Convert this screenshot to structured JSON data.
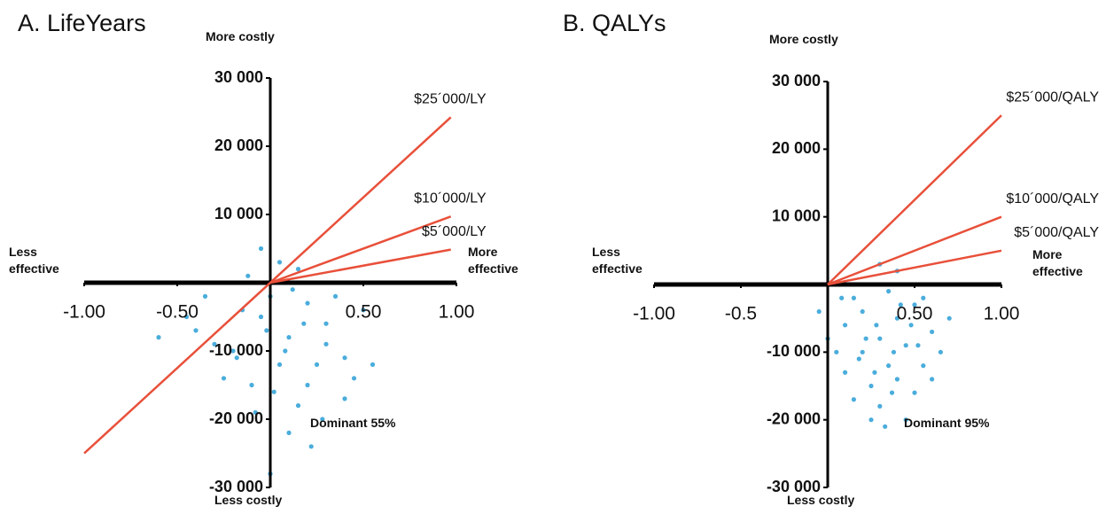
{
  "chart_data": [
    {
      "type": "scatter",
      "title": "A. LifeYears",
      "annotations": {
        "top": "More costly",
        "bottom": "Less costly",
        "left": "Less effective",
        "right": "More effective",
        "result": "Dominant 55%"
      },
      "xlim": [
        -1,
        1
      ],
      "ylim": [
        -30000,
        30000
      ],
      "xticks": [
        {
          "value": -1,
          "label": "-1.00"
        },
        {
          "value": -0.5,
          "label": "-0.50"
        },
        {
          "value": 0.5,
          "label": "0.50"
        },
        {
          "value": 1,
          "label": "1.00"
        }
      ],
      "yticks": [
        {
          "value": 30000,
          "label": "30 000"
        },
        {
          "value": 20000,
          "label": "20 000"
        },
        {
          "value": 10000,
          "label": "10 000"
        },
        {
          "value": -10000,
          "label": "-10 000"
        },
        {
          "value": -20000,
          "label": "-20 000"
        },
        {
          "value": -30000,
          "label": "-30 000"
        }
      ],
      "points": {
        "color": "#2a9fd6",
        "x": [
          -0.05,
          0.1,
          -0.2,
          0.2,
          0.05,
          -0.1,
          0.15,
          0.3,
          -0.3,
          0,
          0.25,
          -0.15,
          0.4,
          -0.4,
          0.1,
          0,
          0.05,
          -0.05,
          0.35,
          -0.25,
          0.2,
          0.45,
          -0.45,
          0.12,
          -0.08,
          0.28,
          0.55,
          -0.6,
          0.08,
          -0.02,
          0.18,
          0.5,
          -0.35,
          0.22,
          0.02,
          0.3,
          -0.18,
          0.4,
          0.15,
          -0.12
        ],
        "y": [
          -5000,
          -8000,
          -10000,
          -3000,
          -12000,
          -15000,
          -18000,
          -6000,
          -9000,
          -2000,
          -12000,
          -4000,
          -11000,
          -7000,
          -22000,
          -28000,
          3000,
          5000,
          -2000,
          -14000,
          -15000,
          -14000,
          -5000,
          -1000,
          -19000,
          -20000,
          -12000,
          -8000,
          -10000,
          -7000,
          -6000,
          -4000,
          -2000,
          -24000,
          -16000,
          -9000,
          -11000,
          -17000,
          2000,
          1000
        ]
      },
      "line_color": "#e8503a",
      "thresholds": [
        {
          "label": "$25´000/LY",
          "x": [
            -1,
            0.97
          ],
          "y": [
            -25000,
            24250
          ]
        },
        {
          "label": "$10´000/LY",
          "x": [
            0,
            0.97
          ],
          "y": [
            0,
            9700
          ]
        },
        {
          "label": "$5´000/LY",
          "x": [
            0,
            0.97
          ],
          "y": [
            0,
            4850
          ]
        }
      ]
    },
    {
      "type": "scatter",
      "title": "B. QALYs",
      "annotations": {
        "top": "More costly",
        "bottom": "Less costly",
        "left": "Less effective",
        "right": "More effective",
        "result": "Dominant 95%"
      },
      "xlim": [
        -1,
        1
      ],
      "ylim": [
        -30000,
        30000
      ],
      "xticks": [
        {
          "value": -1,
          "label": "-1.00"
        },
        -0.5,
        {
          "value": 0.5,
          "label": "0.50"
        },
        {
          "value": 1,
          "label": "1.00"
        }
      ],
      "yticks": [
        {
          "value": 30000,
          "label": "30 000"
        },
        {
          "value": 20000,
          "label": "20 000"
        },
        {
          "value": 10000,
          "label": "10 000"
        },
        {
          "value": -10000,
          "label": "-10 000"
        },
        {
          "value": -20000,
          "label": "-20 000"
        },
        {
          "value": -30000,
          "label": "-30 000"
        }
      ],
      "points": {
        "color": "#2a9fd6",
        "x": [
          0.3,
          0.4,
          0.2,
          0.5,
          0.35,
          0.1,
          0.25,
          0.45,
          0.6,
          0.15,
          0.3,
          0.4,
          0.05,
          0.55,
          0.2,
          0.35,
          0.5,
          0.25,
          0.1,
          0.65,
          0.7,
          0.3,
          0.4,
          0,
          -0.05,
          0.45,
          0.15,
          0.55,
          0.28,
          0.38,
          0.22,
          0.48,
          0.6,
          0.33,
          0.18,
          0.42,
          0.08,
          0.52,
          0.27,
          0.37
        ],
        "y": [
          -8000,
          -5000,
          -10000,
          -3000,
          -12000,
          -6000,
          -15000,
          -9000,
          -7000,
          -2000,
          -18000,
          -14000,
          -10000,
          -12000,
          -4000,
          -1000,
          -16000,
          -20000,
          -13000,
          -10000,
          -5000,
          3000,
          2000,
          -8000,
          -4000,
          -20000,
          -17000,
          -2000,
          -6000,
          -10000,
          -8000,
          -6000,
          -14000,
          -21000,
          -11000,
          -3000,
          -2000,
          -9000,
          -13000,
          -16000
        ]
      },
      "line_color": "#e8503a",
      "thresholds": [
        {
          "label": "$25´000/QALY",
          "x": [
            0,
            1
          ],
          "y": [
            0,
            25000
          ]
        },
        {
          "label": "$10´000/QALY",
          "x": [
            0,
            1
          ],
          "y": [
            0,
            10000
          ]
        },
        {
          "label": "$5´000/QALY",
          "x": [
            0,
            1
          ],
          "y": [
            0,
            5000
          ]
        }
      ]
    }
  ]
}
